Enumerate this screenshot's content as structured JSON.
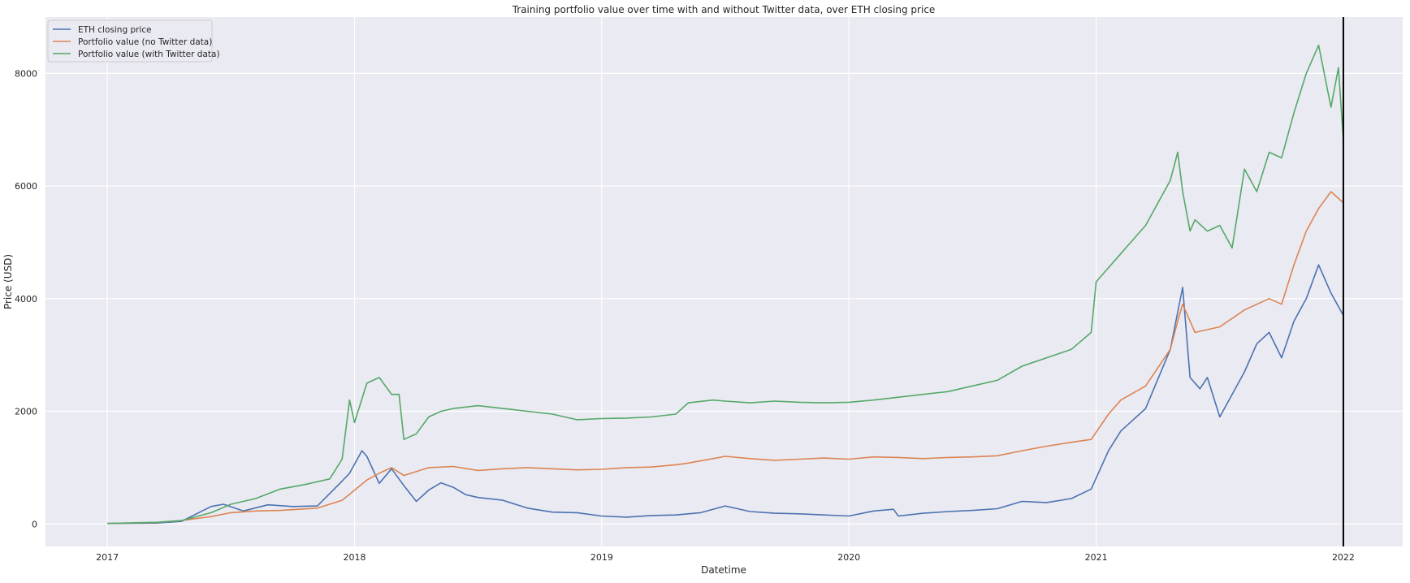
{
  "chart_data": {
    "type": "line",
    "title": "Training portfolio value over time with and without Twitter data, over ETH closing price",
    "xlabel": "Datetime",
    "ylabel": "Price (USD)",
    "x_ticks": [
      "2017",
      "2018",
      "2019",
      "2020",
      "2021",
      "2022"
    ],
    "y_ticks": [
      0,
      2000,
      4000,
      6000,
      8000
    ],
    "xlim": [
      2016.75,
      2022.24
    ],
    "ylim": [
      -400,
      9000
    ],
    "grid": true,
    "legend_position": "top-left",
    "vertical_marker": 2022.0,
    "series": [
      {
        "name": "ETH closing price",
        "color": "#4c72b0",
        "x": [
          2017.0,
          2017.2,
          2017.3,
          2017.42,
          2017.47,
          2017.55,
          2017.65,
          2017.75,
          2017.85,
          2017.95,
          2017.98,
          2018.03,
          2018.05,
          2018.1,
          2018.15,
          2018.2,
          2018.25,
          2018.3,
          2018.35,
          2018.4,
          2018.45,
          2018.5,
          2018.6,
          2018.7,
          2018.8,
          2018.9,
          2019.0,
          2019.1,
          2019.2,
          2019.3,
          2019.4,
          2019.5,
          2019.6,
          2019.7,
          2019.8,
          2019.9,
          2020.0,
          2020.1,
          2020.18,
          2020.2,
          2020.3,
          2020.4,
          2020.5,
          2020.6,
          2020.7,
          2020.8,
          2020.9,
          2020.98,
          2021.05,
          2021.1,
          2021.2,
          2021.3,
          2021.35,
          2021.38,
          2021.42,
          2021.45,
          2021.5,
          2021.55,
          2021.6,
          2021.65,
          2021.7,
          2021.75,
          2021.8,
          2021.85,
          2021.9,
          2021.95,
          2022.0
        ],
        "values": [
          8,
          15,
          45,
          310,
          350,
          230,
          340,
          310,
          320,
          760,
          900,
          1300,
          1200,
          720,
          980,
          680,
          400,
          600,
          730,
          650,
          520,
          470,
          420,
          280,
          210,
          200,
          140,
          120,
          150,
          160,
          200,
          320,
          220,
          190,
          180,
          160,
          140,
          230,
          260,
          140,
          190,
          220,
          240,
          270,
          400,
          380,
          450,
          620,
          1300,
          1650,
          2050,
          3100,
          4200,
          2600,
          2400,
          2600,
          1900,
          2300,
          2700,
          3200,
          3400,
          2950,
          3600,
          4000,
          4600,
          4100,
          3700
        ]
      },
      {
        "name": "Portfolio value (no Twitter data)",
        "color": "#dd8452",
        "x": [
          2017.0,
          2017.2,
          2017.3,
          2017.42,
          2017.5,
          2017.6,
          2017.7,
          2017.85,
          2017.95,
          2018.05,
          2018.1,
          2018.15,
          2018.2,
          2018.3,
          2018.4,
          2018.5,
          2018.6,
          2018.7,
          2018.8,
          2018.9,
          2019.0,
          2019.1,
          2019.2,
          2019.3,
          2019.35,
          2019.5,
          2019.6,
          2019.7,
          2019.8,
          2019.9,
          2020.0,
          2020.1,
          2020.2,
          2020.3,
          2020.4,
          2020.5,
          2020.6,
          2020.7,
          2020.8,
          2020.9,
          2020.98,
          2021.05,
          2021.1,
          2021.2,
          2021.3,
          2021.33,
          2021.35,
          2021.4,
          2021.5,
          2021.6,
          2021.7,
          2021.75,
          2021.8,
          2021.85,
          2021.9,
          2021.95,
          2022.0
        ],
        "values": [
          8,
          25,
          60,
          130,
          200,
          230,
          240,
          280,
          420,
          780,
          900,
          1000,
          860,
          1000,
          1020,
          950,
          980,
          1000,
          980,
          960,
          970,
          1000,
          1010,
          1050,
          1080,
          1200,
          1160,
          1130,
          1150,
          1170,
          1150,
          1190,
          1180,
          1160,
          1180,
          1190,
          1210,
          1300,
          1380,
          1450,
          1500,
          1950,
          2200,
          2450,
          3100,
          3600,
          3900,
          3400,
          3500,
          3800,
          4000,
          3900,
          4600,
          5200,
          5600,
          5900,
          5700
        ]
      },
      {
        "name": "Portfolio value (with Twitter data)",
        "color": "#55a868",
        "x": [
          2017.0,
          2017.2,
          2017.3,
          2017.42,
          2017.5,
          2017.6,
          2017.7,
          2017.8,
          2017.9,
          2017.95,
          2017.98,
          2018.0,
          2018.05,
          2018.1,
          2018.15,
          2018.18,
          2018.2,
          2018.25,
          2018.3,
          2018.35,
          2018.4,
          2018.5,
          2018.6,
          2018.7,
          2018.8,
          2018.9,
          2019.0,
          2019.1,
          2019.2,
          2019.3,
          2019.35,
          2019.45,
          2019.5,
          2019.6,
          2019.7,
          2019.8,
          2019.9,
          2020.0,
          2020.1,
          2020.2,
          2020.3,
          2020.4,
          2020.5,
          2020.6,
          2020.7,
          2020.8,
          2020.9,
          2020.98,
          2021.0,
          2021.1,
          2021.2,
          2021.3,
          2021.33,
          2021.35,
          2021.38,
          2021.4,
          2021.45,
          2021.5,
          2021.55,
          2021.6,
          2021.65,
          2021.7,
          2021.75,
          2021.8,
          2021.85,
          2021.9,
          2021.95,
          2021.98,
          2022.0
        ],
        "values": [
          8,
          30,
          60,
          200,
          350,
          450,
          620,
          700,
          800,
          1150,
          2200,
          1800,
          2500,
          2600,
          2300,
          2300,
          1500,
          1600,
          1900,
          2000,
          2050,
          2100,
          2050,
          2000,
          1950,
          1850,
          1870,
          1880,
          1900,
          1950,
          2150,
          2200,
          2180,
          2150,
          2180,
          2160,
          2150,
          2160,
          2200,
          2250,
          2300,
          2350,
          2450,
          2550,
          2800,
          2950,
          3100,
          3400,
          4300,
          4800,
          5300,
          6100,
          6600,
          5900,
          5200,
          5400,
          5200,
          5300,
          4900,
          6300,
          5900,
          6600,
          6500,
          7300,
          8000,
          8500,
          7400,
          8100,
          6800
        ]
      }
    ]
  }
}
